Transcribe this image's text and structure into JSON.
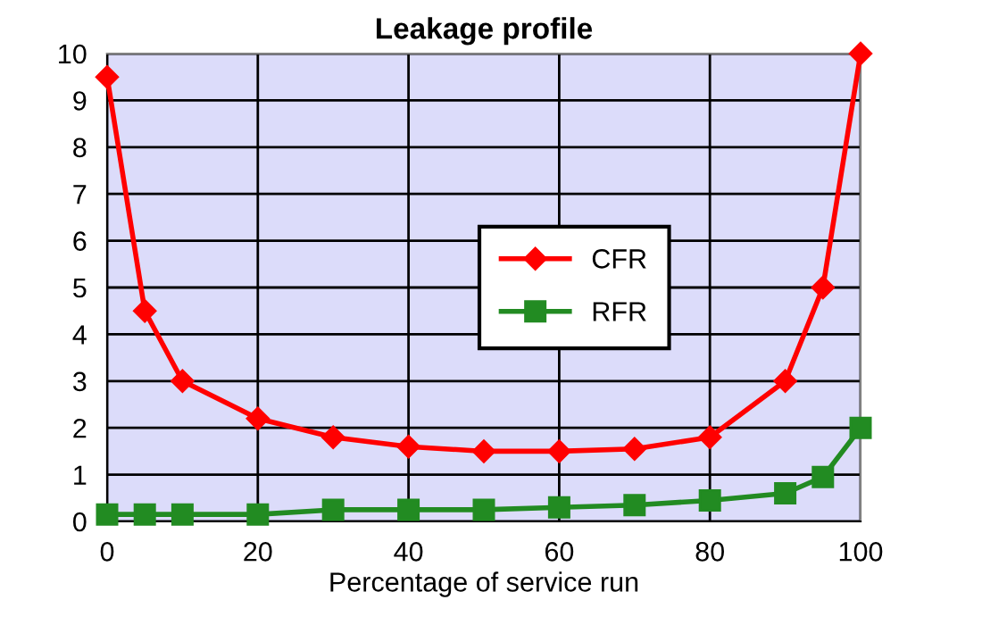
{
  "chart_data": {
    "type": "line",
    "title": "Leakage profile",
    "xlabel": "Percentage of service run",
    "x": [
      0,
      5,
      10,
      20,
      30,
      40,
      50,
      60,
      70,
      80,
      90,
      95,
      100
    ],
    "series": [
      {
        "name": "CFR",
        "color": "#ff0000",
        "marker": "diamond",
        "values": [
          9.5,
          4.5,
          3,
          2.2,
          1.8,
          1.6,
          1.5,
          1.5,
          1.55,
          1.8,
          3,
          5,
          10
        ]
      },
      {
        "name": "RFR",
        "color": "#228b22",
        "marker": "square",
        "values": [
          0.15,
          0.15,
          0.15,
          0.15,
          0.25,
          0.25,
          0.25,
          0.3,
          0.35,
          0.45,
          0.6,
          0.95,
          2.0
        ]
      }
    ],
    "xlim": [
      0,
      100
    ],
    "xticks": [
      0,
      20,
      40,
      60,
      80,
      100
    ],
    "ylim": [
      0,
      10
    ],
    "yticks": [
      0,
      1,
      2,
      3,
      4,
      5,
      6,
      7,
      8,
      9,
      10
    ],
    "grid": true,
    "legend": "center"
  }
}
